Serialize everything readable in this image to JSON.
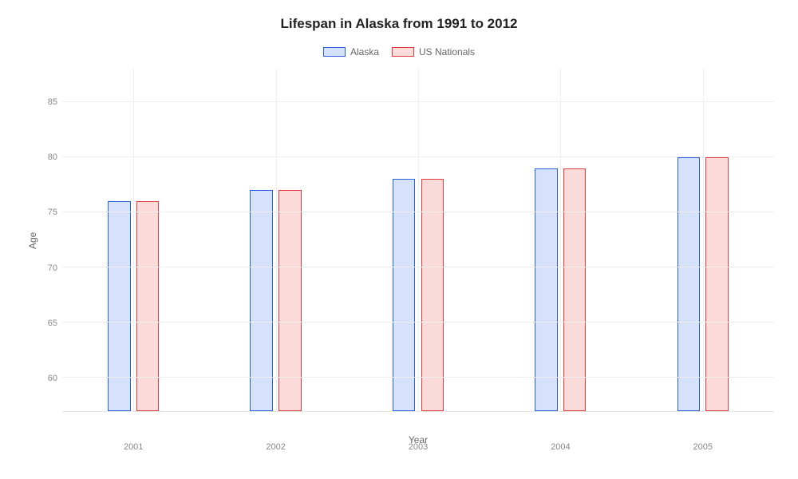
{
  "chart": {
    "type": "bar",
    "title": "Lifespan in Alaska from 1991 to 2012",
    "title_fontsize": 17,
    "xlabel": "Year",
    "ylabel": "Age",
    "label_fontsize": 12,
    "tick_fontsize": 11,
    "background_color": "#ffffff",
    "grid_color": "#eeeeee",
    "axis_color": "#e5e5e5",
    "text_color": "#666666",
    "categories": [
      "2001",
      "2002",
      "2003",
      "2004",
      "2005"
    ],
    "ylim": [
      57,
      88
    ],
    "yticks": [
      60,
      65,
      70,
      75,
      80,
      85
    ],
    "series": [
      {
        "name": "Alaska",
        "values": [
          76,
          77,
          78,
          79,
          80
        ],
        "border_color": "#2a5fdc",
        "fill_color": "#d6e2fb"
      },
      {
        "name": "US Nationals",
        "values": [
          76,
          77,
          78,
          79,
          80
        ],
        "border_color": "#e23b3b",
        "fill_color": "#fbdada"
      }
    ],
    "bar_width_pct": 3.2,
    "bar_gap_pct": 0.8,
    "group_positions_pct": [
      10,
      30,
      50,
      70,
      90
    ],
    "legend_swatch_w": 28,
    "legend_swatch_h": 12
  }
}
